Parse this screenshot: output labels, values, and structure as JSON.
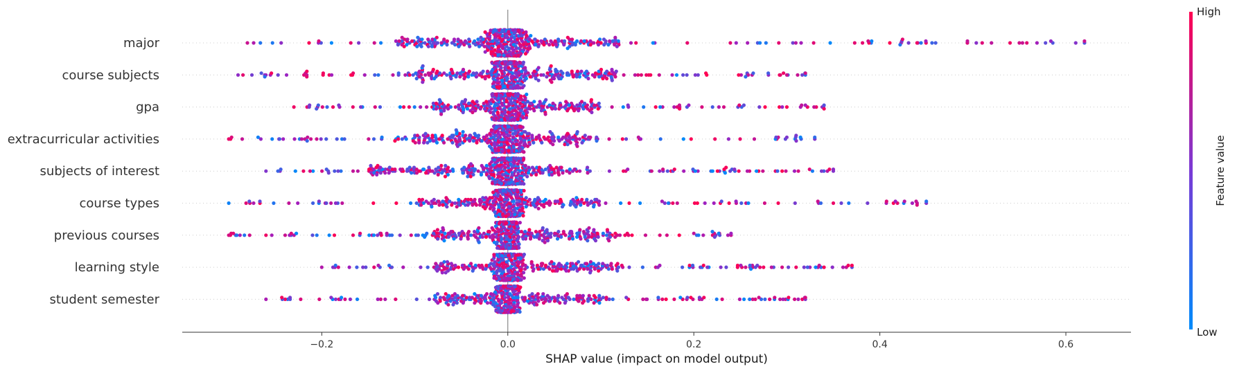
{
  "chart_data": {
    "type": "scatter",
    "subtype": "shap-beeswarm",
    "xlabel": "SHAP value (impact on model output)",
    "xlim": [
      -0.35,
      0.67
    ],
    "xticks": [
      -0.2,
      0.0,
      0.2,
      0.4,
      0.6
    ],
    "xtick_labels": [
      "−0.2",
      "0.0",
      "0.2",
      "0.4",
      "0.6"
    ],
    "features": [
      {
        "name": "major",
        "min": -0.28,
        "max": 0.62,
        "core": [
          -0.12,
          0.12
        ],
        "spread": 0.022,
        "outliers": [
          0.44,
          0.46,
          0.51,
          0.52,
          0.54,
          0.55,
          0.62
        ]
      },
      {
        "name": "course subjects",
        "min": -0.29,
        "max": 0.32,
        "core": [
          -0.1,
          0.12
        ],
        "spread": 0.017,
        "outliers": [
          0.28,
          0.3,
          0.32
        ]
      },
      {
        "name": "gpa",
        "min": -0.23,
        "max": 0.34,
        "core": [
          -0.08,
          0.1
        ],
        "spread": 0.017,
        "outliers": [
          0.3,
          0.32,
          0.34
        ]
      },
      {
        "name": "extracurricular activities",
        "min": -0.3,
        "max": 0.33,
        "core": [
          -0.1,
          0.1
        ],
        "spread": 0.017,
        "outliers": [
          0.3,
          0.31,
          0.33
        ]
      },
      {
        "name": "subjects of interest",
        "min": -0.26,
        "max": 0.35,
        "core": [
          -0.15,
          0.08
        ],
        "spread": 0.02,
        "outliers": [
          0.29,
          0.35
        ]
      },
      {
        "name": "course types",
        "min": -0.3,
        "max": 0.45,
        "core": [
          -0.1,
          0.1
        ],
        "spread": 0.016,
        "outliers": [
          0.35,
          0.44,
          0.45
        ]
      },
      {
        "name": "previous courses",
        "min": -0.3,
        "max": 0.24,
        "core": [
          -0.08,
          0.12
        ],
        "spread": 0.012,
        "outliers": [
          0.2,
          0.22,
          0.24
        ]
      },
      {
        "name": "learning style",
        "min": -0.2,
        "max": 0.37,
        "core": [
          -0.08,
          0.12
        ],
        "spread": 0.013,
        "outliers": [
          0.31,
          0.34,
          0.37
        ]
      },
      {
        "name": "student semester",
        "min": -0.26,
        "max": 0.32,
        "core": [
          -0.08,
          0.1
        ],
        "spread": 0.013,
        "outliers": [
          0.26,
          0.27,
          0.32
        ]
      }
    ],
    "colorbar": {
      "label": "Feature value",
      "high": "High",
      "low": "Low",
      "color_high": "#ff0051",
      "color_mid": "#a020c0",
      "color_low": "#008bfb"
    }
  }
}
